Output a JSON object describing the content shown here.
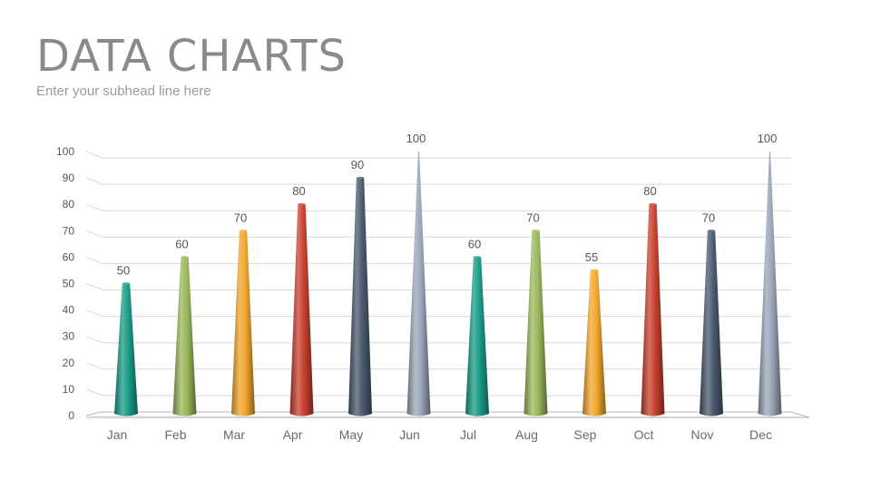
{
  "header": {
    "title": "DATA CHARTS",
    "subtitle": "Enter your subhead line here"
  },
  "chart_data": {
    "type": "bar",
    "categories": [
      "Jan",
      "Feb",
      "Mar",
      "Apr",
      "May",
      "Jun",
      "Jul",
      "Aug",
      "Sep",
      "Oct",
      "Nov",
      "Dec"
    ],
    "values": [
      50,
      60,
      70,
      80,
      90,
      100,
      60,
      70,
      55,
      80,
      70,
      100
    ],
    "ylim": [
      0,
      100
    ],
    "yticks": [
      0,
      10,
      20,
      30,
      40,
      50,
      60,
      70,
      80,
      90,
      100
    ],
    "grid": true,
    "bar_colors": [
      "#1a9c86",
      "#9ab85c",
      "#f2a72e",
      "#c8402e",
      "#4a5a6e",
      "#9aa6b8",
      "#1a9c86",
      "#9ab85c",
      "#f2a72e",
      "#c8402e",
      "#4a5a6e",
      "#9aa6b8"
    ]
  }
}
